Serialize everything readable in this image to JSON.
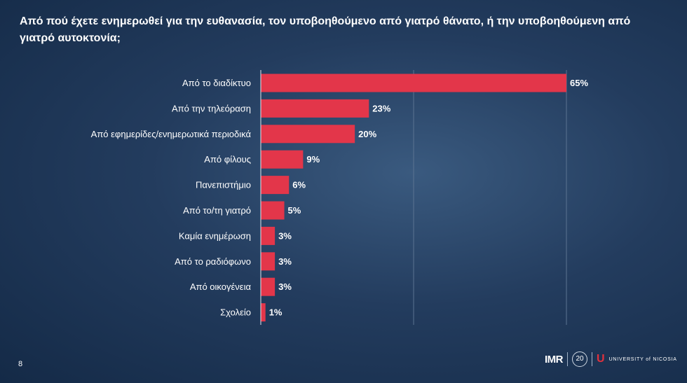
{
  "title": "Από πού έχετε ενημερωθεί για την ευθανασία, τον υποβοηθούμενο από γιατρό θάνατο, ή την υποβοηθούμενη από γιατρό αυτοκτονία;",
  "page_number": "8",
  "logos": {
    "imr": "IMR",
    "twenty": "20",
    "unic_mark": "U",
    "unic_text": "UNIVERSITY of NICOSIA"
  },
  "colors": {
    "bar": "#e3364a",
    "grid": "#5b7391",
    "axis": "#dfe6ee"
  },
  "chart_data": {
    "type": "bar",
    "orientation": "horizontal",
    "categories": [
      "Από το διαδίκτυο",
      "Από την τηλεόραση",
      "Από εφημερίδες/ενημερωτικά περιοδικά",
      "Από φίλους",
      "Πανεπιστήμιο",
      "Από το/τη γιατρό",
      "Καμία ενημέρωση",
      "Από το ραδιόφωνο",
      "Από οικογένεια",
      "Σχολείο"
    ],
    "values": [
      65,
      23,
      20,
      9,
      6,
      5,
      3,
      3,
      3,
      1
    ],
    "labels": [
      "65%",
      "23%",
      "20%",
      "9%",
      "6%",
      "5%",
      "3%",
      "3%",
      "3%",
      "1%"
    ],
    "xlim": [
      0,
      65
    ],
    "grid": true,
    "legend": "none"
  }
}
